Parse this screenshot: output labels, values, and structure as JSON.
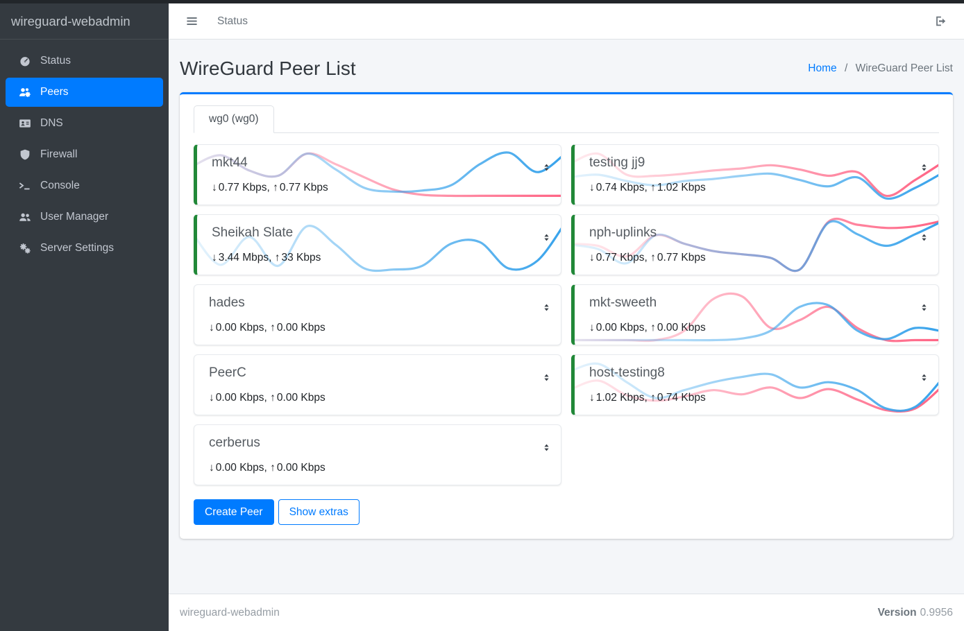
{
  "topbar": {
    "menu_item": "Status"
  },
  "sidebar": {
    "brand": "wireguard-webadmin",
    "items": [
      {
        "label": "Status",
        "icon": "gauge",
        "active": false
      },
      {
        "label": "Peers",
        "icon": "users-gear",
        "active": true
      },
      {
        "label": "DNS",
        "icon": "address-card",
        "active": false
      },
      {
        "label": "Firewall",
        "icon": "shield",
        "active": false
      },
      {
        "label": "Console",
        "icon": "terminal",
        "active": false
      },
      {
        "label": "User Manager",
        "icon": "users",
        "active": false
      },
      {
        "label": "Server Settings",
        "icon": "gears",
        "active": false
      }
    ]
  },
  "page": {
    "title": "WireGuard Peer List",
    "breadcrumb": {
      "home": "Home",
      "separator": "/",
      "current": "WireGuard Peer List"
    }
  },
  "tabs": [
    {
      "label": "wg0 (wg0)",
      "active": true
    }
  ],
  "buttons": {
    "create_peer": "Create Peer",
    "show_extras": "Show extras"
  },
  "footer": {
    "brand": "wireguard-webadmin",
    "version_label": "Version",
    "version_value": "0.9956"
  },
  "colors": {
    "accent": "#007bff",
    "online_green": "#218838",
    "spark_download": "#36a2eb",
    "spark_upload": "#ff6384"
  },
  "peer_columns": {
    "left": [
      {
        "name": "mkt44",
        "online": true,
        "down": "0.77 Kbps,",
        "up": "0.77 Kbps",
        "spark_down": [
          0.35,
          0.13,
          0.42,
          0.52,
          0.1,
          0.4,
          0.75,
          0.82,
          0.8,
          0.7,
          0.3,
          0.08,
          0.45,
          0.08
        ],
        "spark_up": [
          0.35,
          0.13,
          0.42,
          0.52,
          0.1,
          0.3,
          0.55,
          0.78,
          0.88,
          0.9,
          0.9,
          0.9,
          0.9,
          0.9
        ]
      },
      {
        "name": "Sheikah Slate",
        "online": true,
        "down": "3.44 Mbps,",
        "up": "33 Kbps",
        "spark_down": [
          0.25,
          0.88,
          0.35,
          0.9,
          0.15,
          0.5,
          0.95,
          0.97,
          0.9,
          0.48,
          0.45,
          0.95,
          0.8,
          0.05
        ],
        "spark_up": [
          0.98,
          0.98,
          0.98,
          0.98,
          0.98,
          0.98,
          0.98,
          0.98,
          0.98,
          0.98,
          0.98,
          0.98,
          0.98,
          0.98
        ]
      },
      {
        "name": "hades",
        "online": false,
        "down": "0.00 Kbps,",
        "up": "0.00 Kbps",
        "spark_down": [
          0.96,
          0.96,
          0.96,
          0.96,
          0.96,
          0.96,
          0.96,
          0.96,
          0.96,
          0.96,
          0.96,
          0.96,
          0.96,
          0.96
        ],
        "spark_up": [
          0.99,
          0.99,
          0.99,
          0.99,
          0.99,
          0.99,
          0.99,
          0.99,
          0.99,
          0.99,
          0.99,
          0.99,
          0.99,
          0.99
        ]
      },
      {
        "name": "PeerC",
        "online": false,
        "down": "0.00 Kbps,",
        "up": "0.00 Kbps",
        "spark_down": [
          0.96,
          0.96,
          0.96,
          0.96,
          0.96,
          0.96,
          0.96,
          0.96,
          0.96,
          0.96,
          0.96,
          0.96,
          0.96,
          0.96
        ],
        "spark_up": [
          0.99,
          0.99,
          0.99,
          0.99,
          0.99,
          0.99,
          0.99,
          0.99,
          0.99,
          0.99,
          0.99,
          0.99,
          0.99,
          0.99
        ]
      },
      {
        "name": "cerberus",
        "online": false,
        "down": "0.00 Kbps,",
        "up": "0.00 Kbps",
        "spark_down": [
          0.96,
          0.96,
          0.96,
          0.96,
          0.96,
          0.96,
          0.96,
          0.96,
          0.96,
          0.96,
          0.96,
          0.96,
          0.96,
          0.96
        ],
        "spark_up": [
          0.99,
          0.99,
          0.99,
          0.99,
          0.99,
          0.99,
          0.99,
          0.99,
          0.99,
          0.99,
          0.99,
          0.99,
          0.99,
          0.99
        ]
      }
    ],
    "right": [
      {
        "name": "testing jj9",
        "online": true,
        "down": "0.74 Kbps,",
        "up": "1.02 Kbps",
        "spark_down": [
          0.55,
          0.5,
          0.62,
          0.7,
          0.62,
          0.58,
          0.52,
          0.48,
          0.6,
          0.72,
          0.55,
          0.95,
          0.75,
          0.45
        ],
        "spark_up": [
          0.3,
          0.1,
          0.5,
          0.52,
          0.48,
          0.42,
          0.38,
          0.32,
          0.4,
          0.52,
          0.45,
          0.9,
          0.6,
          0.25
        ]
      },
      {
        "name": "nph-uplinks",
        "online": true,
        "down": "0.77 Kbps,",
        "up": "0.77 Kbps",
        "spark_down": [
          0.5,
          0.58,
          0.85,
          0.32,
          0.48,
          0.62,
          0.68,
          0.75,
          0.97,
          0.08,
          0.3,
          0.52,
          0.3,
          0.04
        ],
        "spark_up": [
          0.48,
          0.52,
          0.72,
          0.32,
          0.48,
          0.62,
          0.68,
          0.75,
          0.97,
          0.06,
          0.12,
          0.18,
          0.15,
          0.04
        ]
      },
      {
        "name": "mkt-sweeth",
        "online": true,
        "down": "0.00 Kbps,",
        "up": "0.00 Kbps",
        "spark_down": [
          0.98,
          0.98,
          0.98,
          0.98,
          0.98,
          0.98,
          0.95,
          0.8,
          0.35,
          0.32,
          0.8,
          0.96,
          0.75,
          0.82
        ],
        "spark_up": [
          0.98,
          0.98,
          0.98,
          0.98,
          0.8,
          0.2,
          0.15,
          0.75,
          0.6,
          0.35,
          0.75,
          0.98,
          0.98,
          0.98
        ]
      },
      {
        "name": "host-testing8",
        "online": true,
        "down": "1.02 Kbps,",
        "up": "0.74 Kbps",
        "spark_down": [
          0.25,
          0.1,
          0.45,
          0.75,
          0.6,
          0.45,
          0.35,
          0.3,
          0.55,
          0.45,
          0.6,
          0.95,
          0.92,
          0.35
        ],
        "spark_up": [
          0.6,
          0.42,
          0.7,
          0.8,
          0.72,
          0.6,
          0.68,
          0.55,
          0.75,
          0.58,
          0.78,
          0.98,
          0.95,
          0.5
        ]
      }
    ]
  }
}
